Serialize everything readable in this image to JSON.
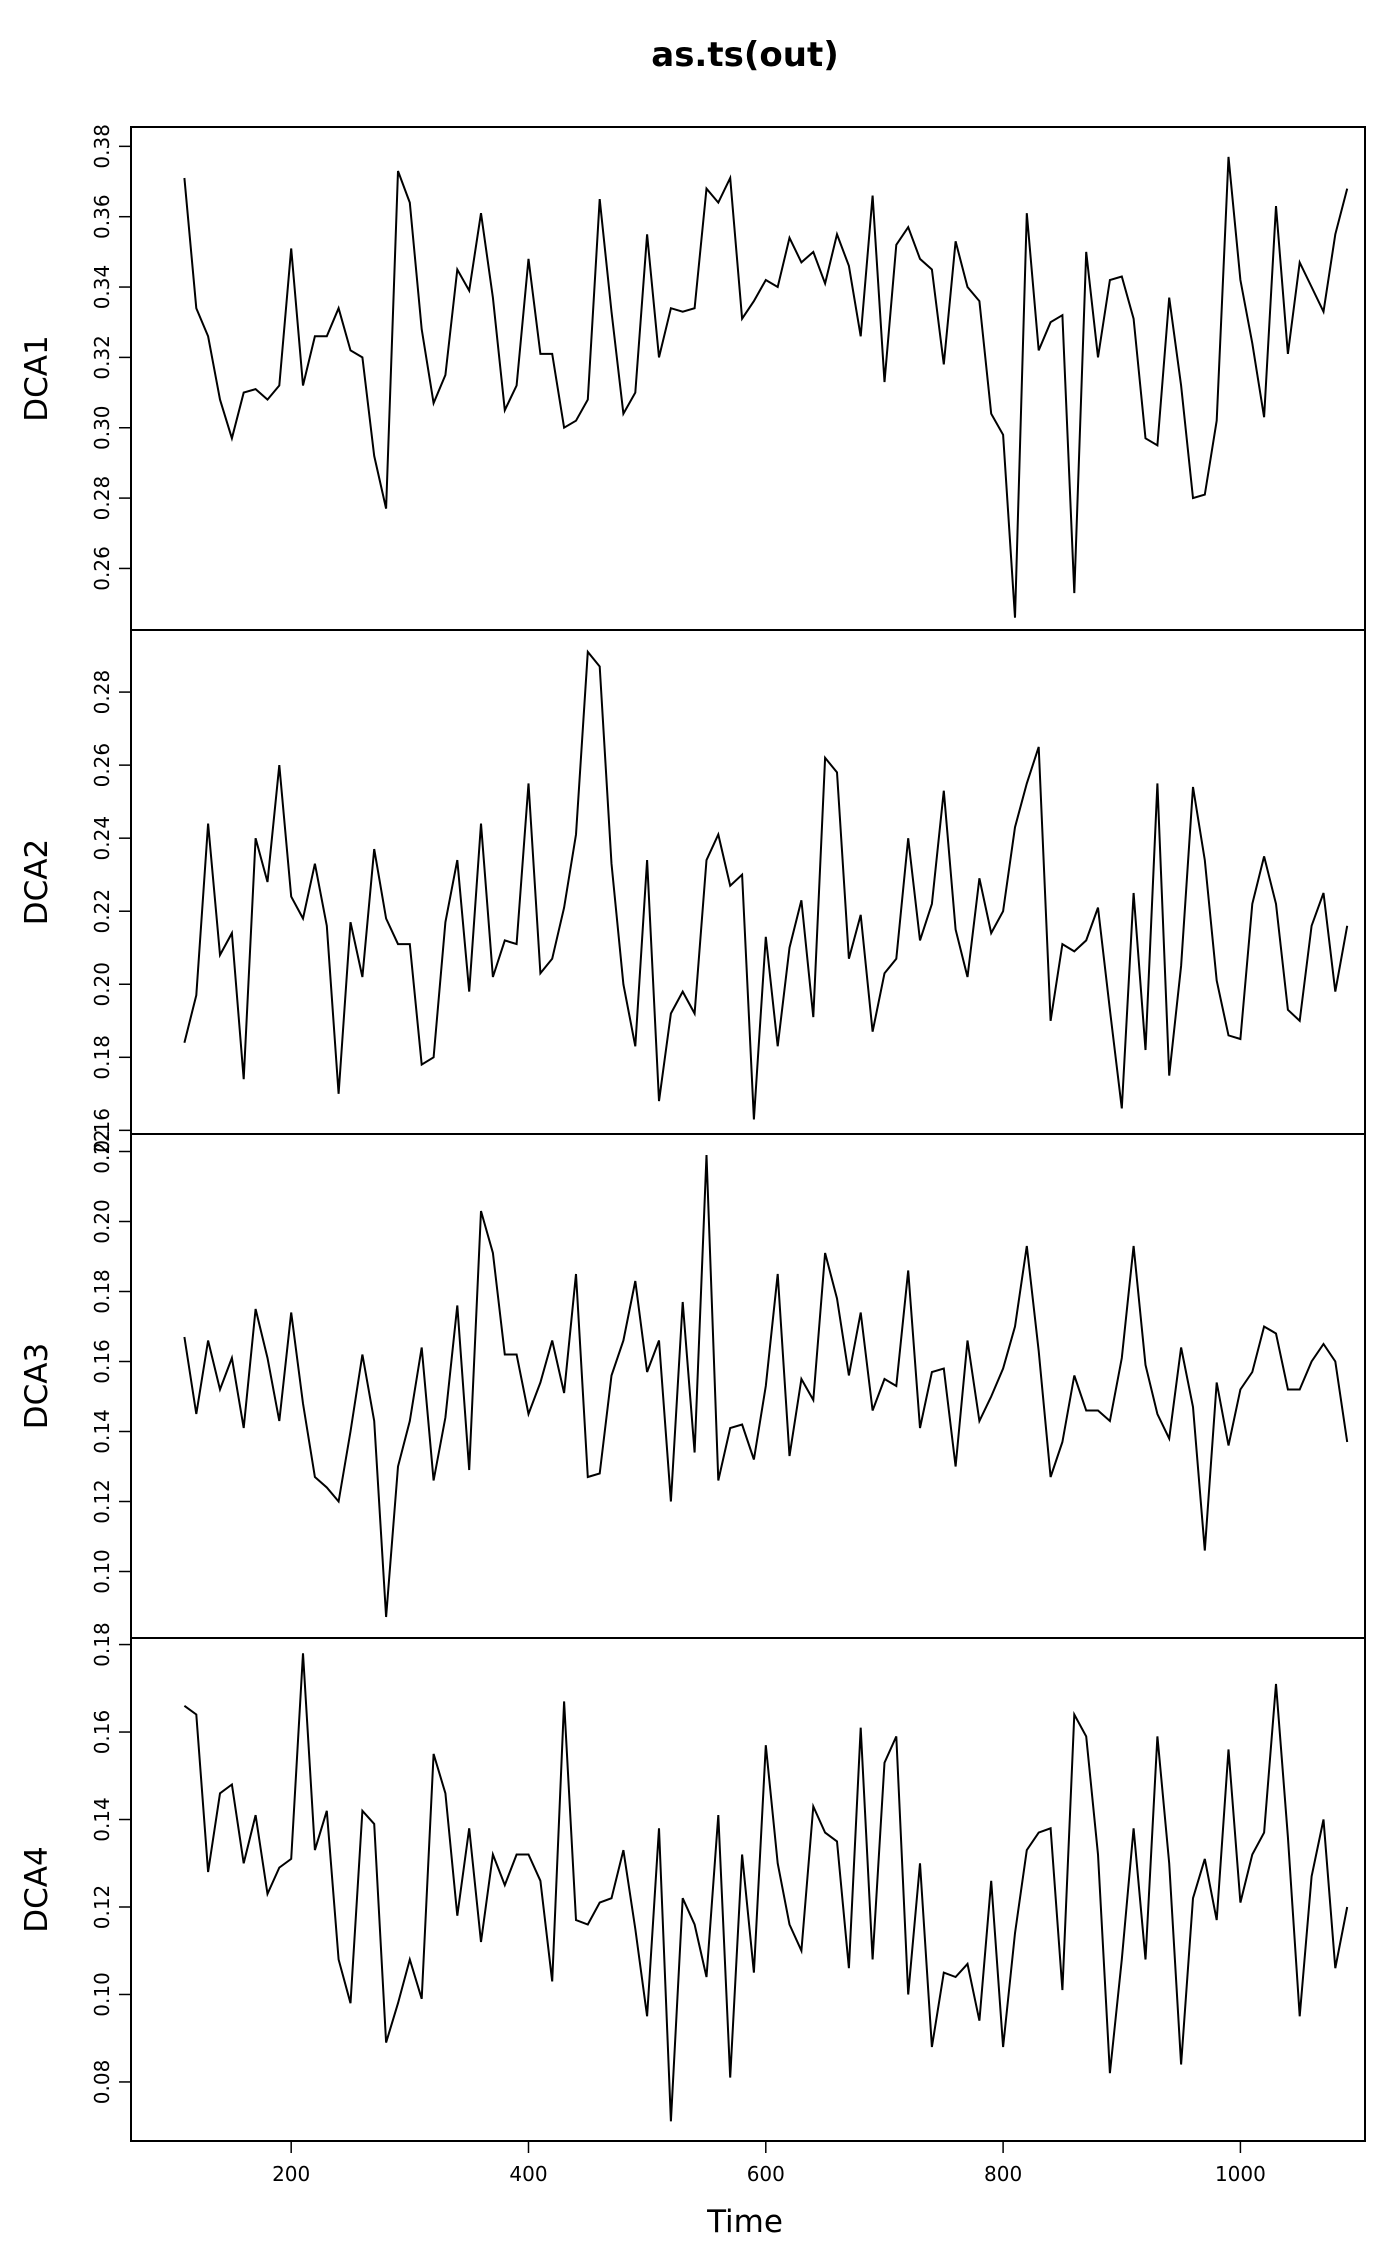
{
  "chart_data": {
    "type": "line",
    "title": "as.ts(out)",
    "xlabel": "Time",
    "x_start": 110,
    "x_step": 10,
    "xlim": [
      65,
      1105
    ],
    "x_ticks": [
      200,
      400,
      600,
      800,
      1000
    ],
    "panels": [
      {
        "ylabel": "DCA1",
        "ylim": [
          0.2425,
          0.3855
        ],
        "y_ticks": [
          0.26,
          0.28,
          0.3,
          0.32,
          0.34,
          0.36,
          0.38
        ],
        "values": [
          0.371,
          0.334,
          0.326,
          0.308,
          0.297,
          0.31,
          0.311,
          0.308,
          0.312,
          0.351,
          0.312,
          0.326,
          0.326,
          0.334,
          0.322,
          0.32,
          0.292,
          0.277,
          0.373,
          0.364,
          0.328,
          0.307,
          0.315,
          0.345,
          0.339,
          0.361,
          0.337,
          0.305,
          0.312,
          0.348,
          0.321,
          0.321,
          0.3,
          0.302,
          0.308,
          0.365,
          0.333,
          0.304,
          0.31,
          0.355,
          0.32,
          0.334,
          0.333,
          0.334,
          0.368,
          0.364,
          0.371,
          0.331,
          0.336,
          0.342,
          0.34,
          0.354,
          0.347,
          0.35,
          0.341,
          0.355,
          0.346,
          0.326,
          0.366,
          0.313,
          0.352,
          0.357,
          0.348,
          0.345,
          0.318,
          0.353,
          0.34,
          0.336,
          0.304,
          0.298,
          0.246,
          0.361,
          0.322,
          0.33,
          0.332,
          0.253,
          0.35,
          0.32,
          0.342,
          0.343,
          0.331,
          0.297,
          0.295,
          0.337,
          0.312,
          0.28,
          0.281,
          0.302,
          0.377,
          0.342,
          0.324,
          0.303,
          0.363,
          0.321,
          0.347,
          0.34,
          0.333,
          0.355,
          0.368
        ]
      },
      {
        "ylabel": "DCA2",
        "ylim": [
          0.159,
          0.297
        ],
        "y_ticks": [
          0.16,
          0.18,
          0.2,
          0.22,
          0.24,
          0.26,
          0.28
        ],
        "values": [
          0.184,
          0.197,
          0.244,
          0.208,
          0.214,
          0.174,
          0.24,
          0.228,
          0.26,
          0.224,
          0.218,
          0.233,
          0.216,
          0.17,
          0.217,
          0.202,
          0.237,
          0.218,
          0.211,
          0.211,
          0.178,
          0.18,
          0.217,
          0.234,
          0.198,
          0.244,
          0.202,
          0.212,
          0.211,
          0.255,
          0.203,
          0.207,
          0.221,
          0.241,
          0.291,
          0.287,
          0.233,
          0.2,
          0.183,
          0.234,
          0.168,
          0.192,
          0.198,
          0.192,
          0.234,
          0.241,
          0.227,
          0.23,
          0.163,
          0.213,
          0.183,
          0.21,
          0.223,
          0.191,
          0.262,
          0.258,
          0.207,
          0.219,
          0.187,
          0.203,
          0.207,
          0.24,
          0.212,
          0.222,
          0.253,
          0.215,
          0.202,
          0.229,
          0.214,
          0.22,
          0.243,
          0.255,
          0.265,
          0.19,
          0.211,
          0.209,
          0.212,
          0.221,
          0.193,
          0.166,
          0.225,
          0.182,
          0.255,
          0.175,
          0.205,
          0.254,
          0.234,
          0.201,
          0.186,
          0.185,
          0.222,
          0.235,
          0.222,
          0.193,
          0.19,
          0.216,
          0.225,
          0.198,
          0.216
        ]
      },
      {
        "ylabel": "DCA3",
        "ylim": [
          0.081,
          0.225
        ],
        "y_ticks": [
          0.1,
          0.12,
          0.14,
          0.16,
          0.18,
          0.2,
          0.22
        ],
        "values": [
          0.167,
          0.145,
          0.166,
          0.152,
          0.161,
          0.141,
          0.175,
          0.161,
          0.143,
          0.174,
          0.148,
          0.127,
          0.124,
          0.12,
          0.14,
          0.162,
          0.143,
          0.087,
          0.13,
          0.143,
          0.164,
          0.126,
          0.144,
          0.176,
          0.129,
          0.203,
          0.191,
          0.162,
          0.162,
          0.145,
          0.154,
          0.166,
          0.151,
          0.185,
          0.127,
          0.128,
          0.156,
          0.166,
          0.183,
          0.157,
          0.166,
          0.12,
          0.177,
          0.134,
          0.219,
          0.126,
          0.141,
          0.142,
          0.132,
          0.153,
          0.185,
          0.133,
          0.155,
          0.149,
          0.191,
          0.178,
          0.156,
          0.174,
          0.146,
          0.155,
          0.153,
          0.186,
          0.141,
          0.157,
          0.158,
          0.13,
          0.166,
          0.143,
          0.15,
          0.158,
          0.17,
          0.193,
          0.163,
          0.127,
          0.137,
          0.156,
          0.146,
          0.146,
          0.143,
          0.161,
          0.193,
          0.159,
          0.145,
          0.138,
          0.164,
          0.147,
          0.106,
          0.154,
          0.136,
          0.152,
          0.157,
          0.17,
          0.168,
          0.152,
          0.152,
          0.16,
          0.165,
          0.16,
          0.137
        ]
      },
      {
        "ylabel": "DCA4",
        "ylim": [
          0.0665,
          0.1815
        ],
        "y_ticks": [
          0.08,
          0.1,
          0.12,
          0.14,
          0.16,
          0.18
        ],
        "values": [
          0.166,
          0.164,
          0.128,
          0.146,
          0.148,
          0.13,
          0.141,
          0.123,
          0.129,
          0.131,
          0.178,
          0.133,
          0.142,
          0.108,
          0.098,
          0.142,
          0.139,
          0.089,
          0.098,
          0.108,
          0.099,
          0.155,
          0.146,
          0.118,
          0.138,
          0.112,
          0.132,
          0.125,
          0.132,
          0.132,
          0.126,
          0.103,
          0.167,
          0.117,
          0.116,
          0.121,
          0.122,
          0.133,
          0.115,
          0.095,
          0.138,
          0.071,
          0.122,
          0.116,
          0.104,
          0.141,
          0.081,
          0.132,
          0.105,
          0.157,
          0.13,
          0.116,
          0.11,
          0.143,
          0.137,
          0.135,
          0.106,
          0.161,
          0.108,
          0.153,
          0.159,
          0.1,
          0.13,
          0.088,
          0.105,
          0.104,
          0.107,
          0.094,
          0.126,
          0.088,
          0.114,
          0.133,
          0.137,
          0.138,
          0.101,
          0.164,
          0.159,
          0.132,
          0.082,
          0.108,
          0.138,
          0.108,
          0.159,
          0.13,
          0.084,
          0.122,
          0.131,
          0.117,
          0.156,
          0.121,
          0.132,
          0.137,
          0.171,
          0.136,
          0.095,
          0.127,
          0.14,
          0.106,
          0.12
        ]
      }
    ]
  }
}
